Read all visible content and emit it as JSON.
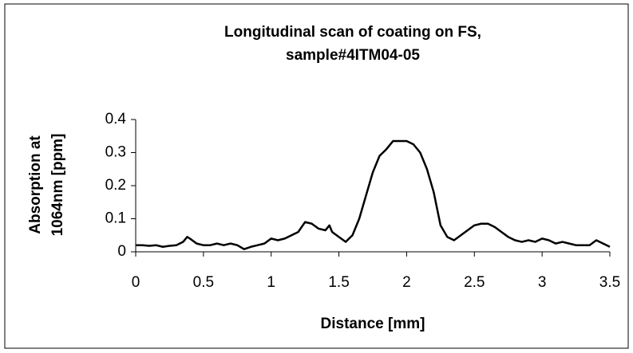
{
  "chart_data": {
    "type": "line",
    "title": [
      "Longitudinal scan of coating on FS,",
      "sample#4ITM04-05"
    ],
    "ylabel": [
      "Absorption at",
      "1064nm [ppm]"
    ],
    "xlabel": "Distance [mm]",
    "xlim": [
      0,
      3.5
    ],
    "xticks": [
      0,
      0.5,
      1,
      1.5,
      2,
      2.5,
      3,
      3.5
    ],
    "ylim": [
      0,
      0.4
    ],
    "yticks": [
      0,
      0.1,
      0.2,
      0.3,
      0.4
    ],
    "grid": false,
    "series": [
      {
        "color": "#000000",
        "x": [
          0,
          0.05,
          0.1,
          0.15,
          0.2,
          0.25,
          0.3,
          0.35,
          0.38,
          0.4,
          0.45,
          0.5,
          0.55,
          0.6,
          0.65,
          0.7,
          0.75,
          0.8,
          0.85,
          0.9,
          0.95,
          1.0,
          1.05,
          1.1,
          1.15,
          1.2,
          1.25,
          1.3,
          1.35,
          1.4,
          1.43,
          1.45,
          1.5,
          1.55,
          1.6,
          1.65,
          1.7,
          1.75,
          1.8,
          1.85,
          1.9,
          1.95,
          2.0,
          2.05,
          2.1,
          2.15,
          2.2,
          2.25,
          2.3,
          2.35,
          2.4,
          2.45,
          2.5,
          2.55,
          2.6,
          2.65,
          2.7,
          2.75,
          2.8,
          2.85,
          2.9,
          2.95,
          3.0,
          3.05,
          3.1,
          3.15,
          3.2,
          3.25,
          3.3,
          3.35,
          3.4,
          3.45,
          3.5
        ],
        "values": [
          0.02,
          0.02,
          0.018,
          0.02,
          0.015,
          0.018,
          0.02,
          0.03,
          0.045,
          0.04,
          0.025,
          0.02,
          0.02,
          0.025,
          0.02,
          0.025,
          0.02,
          0.008,
          0.015,
          0.02,
          0.025,
          0.04,
          0.035,
          0.04,
          0.05,
          0.06,
          0.09,
          0.085,
          0.07,
          0.065,
          0.08,
          0.06,
          0.045,
          0.03,
          0.05,
          0.1,
          0.17,
          0.24,
          0.29,
          0.31,
          0.335,
          0.335,
          0.335,
          0.325,
          0.3,
          0.25,
          0.18,
          0.08,
          0.045,
          0.035,
          0.05,
          0.065,
          0.08,
          0.085,
          0.085,
          0.075,
          0.06,
          0.045,
          0.035,
          0.03,
          0.035,
          0.03,
          0.04,
          0.035,
          0.025,
          0.03,
          0.025,
          0.02,
          0.02,
          0.02,
          0.035,
          0.025,
          0.015
        ]
      }
    ]
  }
}
